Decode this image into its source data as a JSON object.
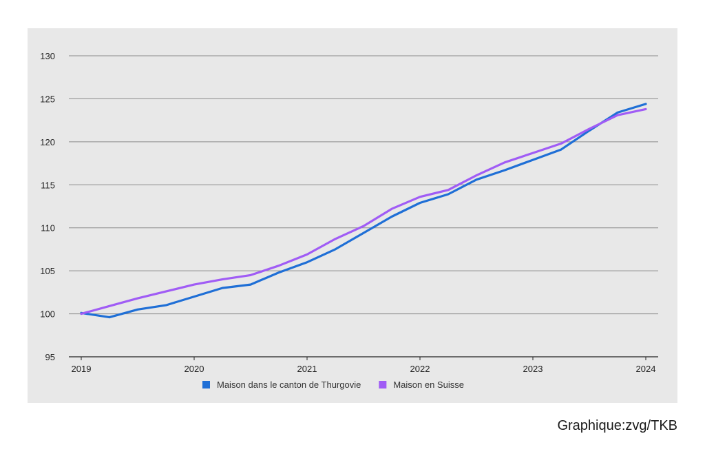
{
  "chart_data": {
    "type": "line",
    "title": "",
    "xlabel": "",
    "ylabel": "",
    "xlim": [
      2019,
      2024
    ],
    "ylim": [
      95,
      130
    ],
    "y_ticks": [
      95,
      100,
      105,
      110,
      115,
      120,
      125,
      130
    ],
    "x_ticks": [
      {
        "value": 2019,
        "label": "2019"
      },
      {
        "value": 2020,
        "label": "2020"
      },
      {
        "value": 2021,
        "label": "2021"
      },
      {
        "value": 2022,
        "label": "2022"
      },
      {
        "value": 2023,
        "label": "2023"
      },
      {
        "value": 2024,
        "label": "2024"
      }
    ],
    "grid": "horizontal",
    "legend_position": "bottom-center",
    "series": [
      {
        "name": "Maison dans le canton de Thurgovie",
        "color": "#1f6fd6",
        "x": [
          2019.0,
          2019.25,
          2019.5,
          2019.75,
          2020.0,
          2020.25,
          2020.5,
          2020.75,
          2021.0,
          2021.25,
          2021.5,
          2021.75,
          2022.0,
          2022.25,
          2022.5,
          2022.75,
          2023.0,
          2023.25,
          2023.5,
          2023.75,
          2024.0
        ],
        "y": [
          100.1,
          99.6,
          100.5,
          101.0,
          102.0,
          103.0,
          103.4,
          104.8,
          106.0,
          107.5,
          109.4,
          111.3,
          112.9,
          113.9,
          115.6,
          116.7,
          117.9,
          119.1,
          121.3,
          123.4,
          124.4
        ]
      },
      {
        "name": "Maison en Suisse",
        "color": "#a05cf5",
        "x": [
          2019.0,
          2019.25,
          2019.5,
          2019.75,
          2020.0,
          2020.25,
          2020.5,
          2020.75,
          2021.0,
          2021.25,
          2021.5,
          2021.75,
          2022.0,
          2022.25,
          2022.5,
          2022.75,
          2023.0,
          2023.25,
          2023.5,
          2023.75,
          2024.0
        ],
        "y": [
          100.0,
          100.9,
          101.8,
          102.6,
          103.4,
          104.0,
          104.5,
          105.6,
          106.9,
          108.7,
          110.2,
          112.2,
          113.6,
          114.4,
          116.1,
          117.6,
          118.7,
          119.8,
          121.5,
          123.1,
          123.8
        ]
      }
    ]
  },
  "source": "Graphique:zvg/TKB"
}
